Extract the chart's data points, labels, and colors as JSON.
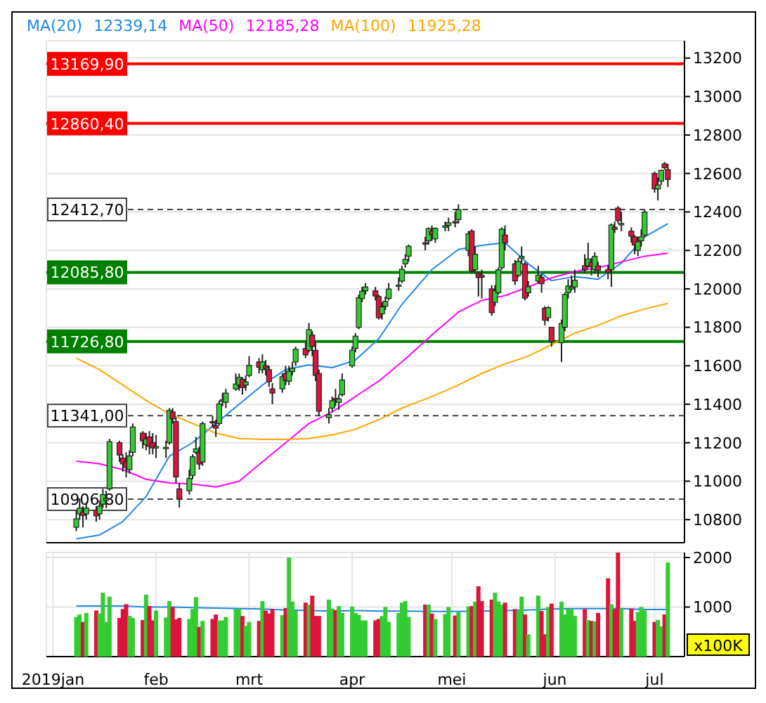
{
  "chart_data": [
    {
      "type": "candlestick",
      "legend": "top left",
      "grid": true,
      "tick_labels": "y",
      "x": [
        "2019-01-08",
        "2019-01-09",
        "2019-01-10",
        "2019-01-11",
        "2019-01-14",
        "2019-01-15",
        "2019-01-16",
        "2019-01-17",
        "2019-01-18",
        "2019-01-21",
        "2019-01-22",
        "2019-01-23",
        "2019-01-24",
        "2019-01-25",
        "2019-01-28",
        "2019-01-29",
        "2019-01-30",
        "2019-01-31",
        "2019-02-01",
        "2019-02-04",
        "2019-02-05",
        "2019-02-06",
        "2019-02-07",
        "2019-02-08",
        "2019-02-11",
        "2019-02-12",
        "2019-02-13",
        "2019-02-14",
        "2019-02-15",
        "2019-02-18",
        "2019-02-19",
        "2019-02-20",
        "2019-02-21",
        "2019-02-22",
        "2019-02-25",
        "2019-02-26",
        "2019-02-27",
        "2019-02-28",
        "2019-03-01",
        "2019-03-04",
        "2019-03-05",
        "2019-03-06",
        "2019-03-07",
        "2019-03-08",
        "2019-03-11",
        "2019-03-12",
        "2019-03-13",
        "2019-03-14",
        "2019-03-15",
        "2019-03-18",
        "2019-03-19",
        "2019-03-20",
        "2019-03-21",
        "2019-03-22",
        "2019-03-25",
        "2019-03-26",
        "2019-03-27",
        "2019-03-28",
        "2019-03-29",
        "2019-04-01",
        "2019-04-02",
        "2019-04-03",
        "2019-04-04",
        "2019-04-05",
        "2019-04-08",
        "2019-04-09",
        "2019-04-10",
        "2019-04-11",
        "2019-04-12",
        "2019-04-15",
        "2019-04-16",
        "2019-04-17",
        "2019-04-18",
        "2019-04-23",
        "2019-04-24",
        "2019-04-25",
        "2019-04-26",
        "2019-04-29",
        "2019-04-30",
        "2019-05-02",
        "2019-05-03",
        "2019-05-06",
        "2019-05-07",
        "2019-05-08",
        "2019-05-09",
        "2019-05-10",
        "2019-05-13",
        "2019-05-14",
        "2019-05-15",
        "2019-05-16",
        "2019-05-17",
        "2019-05-20",
        "2019-05-21",
        "2019-05-22",
        "2019-05-23",
        "2019-05-24",
        "2019-05-27",
        "2019-05-28",
        "2019-05-29",
        "2019-05-30",
        "2019-05-31",
        "2019-06-03",
        "2019-06-04",
        "2019-06-05",
        "2019-06-06",
        "2019-06-07",
        "2019-06-10",
        "2019-06-11",
        "2019-06-12",
        "2019-06-13",
        "2019-06-14",
        "2019-06-17",
        "2019-06-18",
        "2019-06-19",
        "2019-06-20",
        "2019-06-21",
        "2019-06-24",
        "2019-06-25",
        "2019-06-26",
        "2019-06-27",
        "2019-06-28",
        "2019-07-01",
        "2019-07-02",
        "2019-07-03",
        "2019-07-04",
        "2019-07-05"
      ],
      "ohlc": [
        [
          10760,
          10850,
          10740,
          10804
        ],
        [
          10830,
          10910,
          10800,
          10860
        ],
        [
          10840,
          10870,
          10760,
          10822
        ],
        [
          10830,
          10890,
          10800,
          10860
        ],
        [
          10850,
          10870,
          10790,
          10820
        ],
        [
          10830,
          10900,
          10800,
          10870
        ],
        [
          10880,
          10960,
          10860,
          10930
        ],
        [
          10900,
          10950,
          10860,
          10910
        ],
        [
          10960,
          11220,
          10950,
          11205
        ],
        [
          11200,
          11210,
          11100,
          11136
        ],
        [
          11120,
          11140,
          11050,
          11090
        ],
        [
          11100,
          11150,
          11020,
          11071
        ],
        [
          11060,
          11160,
          11040,
          11131
        ],
        [
          11150,
          11300,
          11130,
          11282
        ],
        [
          11250,
          11260,
          11170,
          11210
        ],
        [
          11190,
          11250,
          11160,
          11219
        ],
        [
          11230,
          11260,
          11140,
          11181
        ],
        [
          11200,
          11250,
          11140,
          11173
        ],
        [
          11180,
          11240,
          11120,
          11180
        ],
        [
          11170,
          11210,
          11120,
          11176
        ],
        [
          11200,
          11380,
          11190,
          11368
        ],
        [
          11360,
          11380,
          11300,
          11324
        ],
        [
          11310,
          11330,
          10990,
          11022
        ],
        [
          10960,
          10990,
          10863,
          10907
        ],
        [
          10950,
          11060,
          10930,
          11014
        ],
        [
          11030,
          11140,
          11010,
          11127
        ],
        [
          11150,
          11230,
          11140,
          11168
        ],
        [
          11150,
          11180,
          11060,
          11089
        ],
        [
          11100,
          11310,
          11080,
          11299
        ],
        [
          11310,
          11340,
          11280,
          11309
        ],
        [
          11290,
          11320,
          11230,
          11276
        ],
        [
          11300,
          11420,
          11290,
          11402
        ],
        [
          11420,
          11460,
          11390,
          11423
        ],
        [
          11410,
          11480,
          11380,
          11458
        ],
        [
          11480,
          11560,
          11470,
          11505
        ],
        [
          11500,
          11560,
          11470,
          11540
        ],
        [
          11530,
          11540,
          11450,
          11487
        ],
        [
          11500,
          11550,
          11470,
          11516
        ],
        [
          11550,
          11650,
          11540,
          11602
        ],
        [
          11620,
          11640,
          11560,
          11592
        ],
        [
          11580,
          11660,
          11560,
          11620
        ],
        [
          11600,
          11630,
          11550,
          11587
        ],
        [
          11580,
          11600,
          11490,
          11518
        ],
        [
          11480,
          11510,
          11400,
          11458
        ],
        [
          11480,
          11560,
          11460,
          11543
        ],
        [
          11560,
          11600,
          11500,
          11524
        ],
        [
          11520,
          11600,
          11500,
          11572
        ],
        [
          11570,
          11620,
          11550,
          11587
        ],
        [
          11620,
          11700,
          11600,
          11686
        ],
        [
          11690,
          11720,
          11640,
          11657
        ],
        [
          11680,
          11823,
          11670,
          11788
        ],
        [
          11760,
          11780,
          11650,
          11700
        ],
        [
          11680,
          11720,
          11520,
          11550
        ],
        [
          11560,
          11580,
          11340,
          11364
        ],
        [
          11330,
          11380,
          11300,
          11346
        ],
        [
          11380,
          11440,
          11360,
          11419
        ],
        [
          11430,
          11480,
          11390,
          11428
        ],
        [
          11410,
          11450,
          11370,
          11428
        ],
        [
          11450,
          11560,
          11440,
          11526
        ],
        [
          11600,
          11700,
          11590,
          11681
        ],
        [
          11690,
          11770,
          11670,
          11754
        ],
        [
          11800,
          11970,
          11790,
          11954
        ],
        [
          11950,
          12010,
          11930,
          11988
        ],
        [
          11990,
          12030,
          11970,
          12010
        ],
        [
          11990,
          12010,
          11940,
          11963
        ],
        [
          11960,
          11970,
          11840,
          11850
        ],
        [
          11870,
          11930,
          11840,
          11906
        ],
        [
          11910,
          11960,
          11890,
          11935
        ],
        [
          11950,
          12030,
          11940,
          11999
        ],
        [
          12020,
          12060,
          11990,
          12020
        ],
        [
          12040,
          12120,
          12030,
          12101
        ],
        [
          12130,
          12180,
          12110,
          12153
        ],
        [
          12170,
          12230,
          12140,
          12222
        ],
        [
          12240,
          12270,
          12200,
          12236
        ],
        [
          12250,
          12320,
          12230,
          12313
        ],
        [
          12300,
          12330,
          12250,
          12282
        ],
        [
          12260,
          12320,
          12240,
          12315
        ],
        [
          12320,
          12350,
          12300,
          12328
        ],
        [
          12330,
          12370,
          12300,
          12344
        ],
        [
          12350,
          12400,
          12320,
          12345
        ],
        [
          12360,
          12440,
          12340,
          12412
        ],
        [
          12200,
          12300,
          12170,
          12286
        ],
        [
          12300,
          12310,
          12080,
          12093
        ],
        [
          12100,
          12220,
          12080,
          12180
        ],
        [
          12080,
          12090,
          11960,
          12059
        ],
        [
          12070,
          12100,
          11950,
          12060
        ],
        [
          12000,
          12020,
          11860,
          11876
        ],
        [
          11930,
          12020,
          11910,
          11991
        ],
        [
          11980,
          12110,
          11970,
          12099
        ],
        [
          12110,
          12320,
          12100,
          12310
        ],
        [
          12280,
          12330,
          12200,
          12239
        ],
        [
          12130,
          12150,
          12020,
          12041
        ],
        [
          12070,
          12160,
          12060,
          12143
        ],
        [
          12160,
          12220,
          12130,
          12169
        ],
        [
          12130,
          12140,
          11940,
          11952
        ],
        [
          11980,
          12040,
          11960,
          12011
        ],
        [
          12040,
          12120,
          12030,
          12071
        ],
        [
          12060,
          12080,
          11980,
          12027
        ],
        [
          11900,
          11910,
          11810,
          11837
        ],
        [
          11850,
          11910,
          11830,
          11902
        ],
        [
          11800,
          11800,
          11700,
          11727
        ],
        [
          11720,
          11840,
          11620,
          11820
        ],
        [
          11800,
          11980,
          11780,
          11971
        ],
        [
          11980,
          12050,
          11950,
          12015
        ],
        [
          12000,
          12070,
          11990,
          12009
        ],
        [
          12010,
          12100,
          11980,
          12045
        ],
        [
          12120,
          12180,
          12080,
          12100
        ],
        [
          12120,
          12240,
          12110,
          12155
        ],
        [
          12140,
          12160,
          12070,
          12115
        ],
        [
          12100,
          12190,
          12080,
          12169
        ],
        [
          12120,
          12140,
          12060,
          12096
        ],
        [
          12100,
          12120,
          12050,
          12086
        ],
        [
          12100,
          12340,
          12010,
          12332
        ],
        [
          12320,
          12350,
          12290,
          12309
        ],
        [
          12420,
          12430,
          12340,
          12355
        ],
        [
          12340,
          12400,
          12300,
          12340
        ],
        [
          12300,
          12320,
          12240,
          12274
        ],
        [
          12270,
          12280,
          12180,
          12228
        ],
        [
          12200,
          12270,
          12170,
          12245
        ],
        [
          12250,
          12310,
          12220,
          12271
        ],
        [
          12280,
          12410,
          12270,
          12399
        ],
        [
          12600,
          12610,
          12500,
          12520
        ],
        [
          12520,
          12580,
          12460,
          12540
        ],
        [
          12560,
          12620,
          12540,
          12616
        ],
        [
          12650,
          12660,
          12620,
          12630
        ],
        [
          12620,
          12650,
          12530,
          12569
        ]
      ],
      "colors": [
        "#33cc33",
        "#33cc33",
        "#dc143c",
        "#33cc33",
        "#dc143c",
        "#33cc33",
        "#33cc33",
        "#33cc33",
        "#33cc33",
        "#dc143c",
        "#dc143c",
        "#dc143c",
        "#33cc33",
        "#33cc33",
        "#dc143c",
        "#33cc33",
        "#dc143c",
        "#dc143c",
        "#33cc33",
        "#33cc33",
        "#33cc33",
        "#dc143c",
        "#dc143c",
        "#dc143c",
        "#33cc33",
        "#33cc33",
        "#33cc33",
        "#dc143c",
        "#33cc33",
        "#dc143c",
        "#dc143c",
        "#33cc33",
        "#33cc33",
        "#33cc33",
        "#33cc33",
        "#33cc33",
        "#dc143c",
        "#33cc33",
        "#33cc33",
        "#dc143c",
        "#33cc33",
        "#dc143c",
        "#dc143c",
        "#dc143c",
        "#33cc33",
        "#dc143c",
        "#33cc33",
        "#33cc33",
        "#33cc33",
        "#dc143c",
        "#33cc33",
        "#dc143c",
        "#dc143c",
        "#dc143c",
        "#33cc33",
        "#33cc33",
        "#dc143c",
        "#33cc33",
        "#33cc33",
        "#33cc33",
        "#33cc33",
        "#33cc33",
        "#33cc33",
        "#33cc33",
        "#dc143c",
        "#dc143c",
        "#33cc33",
        "#33cc33",
        "#33cc33",
        "#33cc33",
        "#33cc33",
        "#33cc33",
        "#33cc33",
        "#dc143c",
        "#33cc33",
        "#dc143c",
        "#33cc33",
        "#33cc33",
        "#33cc33",
        "#dc143c",
        "#33cc33",
        "#33cc33",
        "#dc143c",
        "#33cc33",
        "#dc143c",
        "#dc143c",
        "#dc143c",
        "#33cc33",
        "#33cc33",
        "#33cc33",
        "#dc143c",
        "#dc143c",
        "#33cc33",
        "#33cc33",
        "#dc143c",
        "#33cc33",
        "#33cc33",
        "#dc143c",
        "#dc143c",
        "#33cc33",
        "#dc143c",
        "#33cc33",
        "#33cc33",
        "#33cc33",
        "#33cc33",
        "#33cc33",
        "#dc143c",
        "#33cc33",
        "#dc143c",
        "#33cc33",
        "#dc143c",
        "#dc143c",
        "#33cc33",
        "#dc143c",
        "#dc143c",
        "#33cc33",
        "#dc143c",
        "#dc143c",
        "#33cc33",
        "#33cc33",
        "#33cc33",
        "#dc143c",
        "#33cc33",
        "#33cc33",
        "#dc143c",
        "#dc143c"
      ],
      "series": [
        {
          "type": "line",
          "name": "MA(20)",
          "color": "#1e88e5",
          "x": [
            "2019-01-08",
            "2019-01-15",
            "2019-01-22",
            "2019-01-29",
            "2019-02-05",
            "2019-02-12",
            "2019-02-19",
            "2019-02-26",
            "2019-03-05",
            "2019-03-12",
            "2019-03-19",
            "2019-03-26",
            "2019-04-02",
            "2019-04-09",
            "2019-04-16",
            "2019-04-25",
            "2019-05-03",
            "2019-05-10",
            "2019-05-17",
            "2019-05-24",
            "2019-05-31",
            "2019-06-07",
            "2019-06-14",
            "2019-06-21",
            "2019-06-28",
            "2019-07-05"
          ],
          "values": [
            10700,
            10720,
            10790,
            10920,
            11130,
            11200,
            11300,
            11400,
            11500,
            11580,
            11605,
            11590,
            11630,
            11740,
            11920,
            12100,
            12205,
            12226,
            12240,
            12130,
            12043,
            12064,
            12050,
            12134,
            12270,
            12339
          ]
        },
        {
          "type": "line",
          "name": "MA(50)",
          "color": "#ff00ff",
          "x": [
            "2019-01-08",
            "2019-01-15",
            "2019-01-22",
            "2019-01-29",
            "2019-02-05",
            "2019-02-12",
            "2019-02-19",
            "2019-02-26",
            "2019-03-05",
            "2019-03-12",
            "2019-03-19",
            "2019-03-26",
            "2019-04-02",
            "2019-04-09",
            "2019-04-16",
            "2019-04-25",
            "2019-05-03",
            "2019-05-10",
            "2019-05-17",
            "2019-05-24",
            "2019-05-31",
            "2019-06-07",
            "2019-06-14",
            "2019-06-21",
            "2019-06-28",
            "2019-07-05"
          ],
          "values": [
            11104,
            11090,
            11060,
            11010,
            10991,
            10985,
            10970,
            11000,
            11100,
            11200,
            11300,
            11360,
            11440,
            11520,
            11620,
            11760,
            11880,
            11940,
            11965,
            12010,
            12057,
            12090,
            12110,
            12140,
            12170,
            12185
          ]
        },
        {
          "type": "line",
          "name": "MA(100)",
          "color": "#ffa500",
          "x": [
            "2019-01-08",
            "2019-01-15",
            "2019-01-22",
            "2019-01-29",
            "2019-02-05",
            "2019-02-12",
            "2019-02-19",
            "2019-02-26",
            "2019-03-05",
            "2019-03-12",
            "2019-03-19",
            "2019-03-26",
            "2019-04-02",
            "2019-04-09",
            "2019-04-16",
            "2019-04-25",
            "2019-05-03",
            "2019-05-10",
            "2019-05-17",
            "2019-05-24",
            "2019-05-31",
            "2019-06-07",
            "2019-06-14",
            "2019-06-21",
            "2019-06-28",
            "2019-07-05"
          ],
          "values": [
            11640,
            11580,
            11500,
            11420,
            11350,
            11300,
            11250,
            11222,
            11217,
            11217,
            11222,
            11240,
            11270,
            11320,
            11380,
            11440,
            11500,
            11560,
            11610,
            11650,
            11710,
            11770,
            11810,
            11860,
            11895,
            11925
          ]
        }
      ],
      "annotations": [
        "12339,14",
        "12185,28",
        "11925,28"
      ],
      "ref_lines": [
        {
          "axis": "y",
          "value": 13169.9,
          "label": "13169,90",
          "color": "#ff0000",
          "line_style": "solid"
        },
        {
          "axis": "y",
          "value": 12860.4,
          "label": "12860,40",
          "color": "#ff0000",
          "line_style": "solid"
        },
        {
          "axis": "y",
          "value": 12412.7,
          "label": "12412,70",
          "color": "#444444",
          "line_style": "dashed"
        },
        {
          "axis": "y",
          "value": 12085.8,
          "label": "12085,80",
          "color": "#008000",
          "line_style": "solid"
        },
        {
          "axis": "y",
          "value": 11726.8,
          "label": "11726,80",
          "color": "#008000",
          "line_style": "solid"
        },
        {
          "axis": "y",
          "value": 11341,
          "label": "11341,00",
          "color": "#444444",
          "line_style": "dashed"
        },
        {
          "axis": "y",
          "value": 10906.8,
          "label": "10906,80",
          "color": "#444444",
          "line_style": "dashed"
        }
      ],
      "xlim": [
        "2018-12-30",
        "2019-07-10"
      ],
      "xticks": [
        {
          "value": "2019-01-01",
          "label": null
        },
        {
          "value": "2019-02-01",
          "label": null
        },
        {
          "value": "2019-03-01",
          "label": null
        },
        {
          "value": "2019-04-01",
          "label": null
        },
        {
          "value": "2019-05-01",
          "label": null
        },
        {
          "value": "2019-06-01",
          "label": null
        },
        {
          "value": "2019-07-01",
          "label": null
        }
      ],
      "ylim": [
        10680,
        13290
      ],
      "yticks": [
        10800,
        11000,
        11200,
        11400,
        11600,
        11800,
        12000,
        12200,
        12400,
        12600,
        12800,
        13000,
        13200
      ]
    },
    {
      "type": "bar",
      "grid": true,
      "ylabel": "x100K",
      "x": [
        "2019-01-08",
        "2019-01-09",
        "2019-01-10",
        "2019-01-11",
        "2019-01-14",
        "2019-01-15",
        "2019-01-16",
        "2019-01-17",
        "2019-01-18",
        "2019-01-21",
        "2019-01-22",
        "2019-01-23",
        "2019-01-24",
        "2019-01-25",
        "2019-01-28",
        "2019-01-29",
        "2019-01-30",
        "2019-01-31",
        "2019-02-01",
        "2019-02-04",
        "2019-02-05",
        "2019-02-06",
        "2019-02-07",
        "2019-02-08",
        "2019-02-11",
        "2019-02-12",
        "2019-02-13",
        "2019-02-14",
        "2019-02-15",
        "2019-02-18",
        "2019-02-19",
        "2019-02-20",
        "2019-02-21",
        "2019-02-22",
        "2019-02-25",
        "2019-02-26",
        "2019-02-27",
        "2019-02-28",
        "2019-03-01",
        "2019-03-04",
        "2019-03-05",
        "2019-03-06",
        "2019-03-07",
        "2019-03-08",
        "2019-03-11",
        "2019-03-12",
        "2019-03-13",
        "2019-03-14",
        "2019-03-15",
        "2019-03-18",
        "2019-03-19",
        "2019-03-20",
        "2019-03-21",
        "2019-03-22",
        "2019-03-25",
        "2019-03-26",
        "2019-03-27",
        "2019-03-28",
        "2019-03-29",
        "2019-04-01",
        "2019-04-02",
        "2019-04-03",
        "2019-04-04",
        "2019-04-05",
        "2019-04-08",
        "2019-04-09",
        "2019-04-10",
        "2019-04-11",
        "2019-04-12",
        "2019-04-15",
        "2019-04-16",
        "2019-04-17",
        "2019-04-18",
        "2019-04-23",
        "2019-04-24",
        "2019-04-25",
        "2019-04-26",
        "2019-04-29",
        "2019-04-30",
        "2019-05-02",
        "2019-05-03",
        "2019-05-06",
        "2019-05-07",
        "2019-05-08",
        "2019-05-09",
        "2019-05-10",
        "2019-05-13",
        "2019-05-14",
        "2019-05-15",
        "2019-05-16",
        "2019-05-17",
        "2019-05-20",
        "2019-05-21",
        "2019-05-22",
        "2019-05-23",
        "2019-05-24",
        "2019-05-27",
        "2019-05-28",
        "2019-05-29",
        "2019-05-30",
        "2019-05-31",
        "2019-06-03",
        "2019-06-04",
        "2019-06-05",
        "2019-06-06",
        "2019-06-07",
        "2019-06-10",
        "2019-06-11",
        "2019-06-12",
        "2019-06-13",
        "2019-06-14",
        "2019-06-17",
        "2019-06-18",
        "2019-06-19",
        "2019-06-20",
        "2019-06-21",
        "2019-06-24",
        "2019-06-25",
        "2019-06-26",
        "2019-06-27",
        "2019-06-28",
        "2019-07-01",
        "2019-07-02",
        "2019-07-03",
        "2019-07-04",
        "2019-07-05"
      ],
      "series": [
        {
          "type": "bar",
          "values": [
            800,
            850,
            700,
            880,
            930,
            870,
            1290,
            700,
            1210,
            780,
            960,
            1060,
            820,
            780,
            740,
            1250,
            1020,
            730,
            930,
            790,
            1120,
            1000,
            750,
            780,
            760,
            960,
            1200,
            600,
            720,
            760,
            850,
            730,
            730,
            800,
            960,
            960,
            820,
            620,
            700,
            720,
            1120,
            930,
            870,
            960,
            840,
            980,
            2000,
            1110,
            920,
            1090,
            1050,
            1230,
            820,
            820,
            1150,
            970,
            940,
            1020,
            880,
            1010,
            880,
            840,
            730,
            730,
            730,
            760,
            820,
            1000,
            700,
            880,
            1090,
            1120,
            800,
            1050,
            1050,
            870,
            760,
            860,
            1000,
            830,
            900,
            1010,
            1020,
            1110,
            1420,
            1120,
            1150,
            1290,
            1110,
            1050,
            1090,
            960,
            930,
            1210,
            850,
            450,
            1230,
            920,
            450,
            1000,
            1070,
            1110,
            850,
            960,
            960,
            820,
            960,
            740,
            720,
            710,
            880,
            1580,
            1060,
            960,
            2100,
            970,
            970,
            720,
            900,
            1000,
            930,
            700,
            740,
            610,
            850,
            1900
          ],
          "colors": [
            "#33cc33",
            "#33cc33",
            "#dc143c",
            "#33cc33",
            "#dc143c",
            "#33cc33",
            "#33cc33",
            "#33cc33",
            "#33cc33",
            "#dc143c",
            "#dc143c",
            "#dc143c",
            "#33cc33",
            "#33cc33",
            "#dc143c",
            "#33cc33",
            "#dc143c",
            "#dc143c",
            "#33cc33",
            "#33cc33",
            "#33cc33",
            "#dc143c",
            "#dc143c",
            "#dc143c",
            "#33cc33",
            "#33cc33",
            "#33cc33",
            "#dc143c",
            "#33cc33",
            "#dc143c",
            "#dc143c",
            "#33cc33",
            "#33cc33",
            "#33cc33",
            "#33cc33",
            "#33cc33",
            "#dc143c",
            "#33cc33",
            "#33cc33",
            "#dc143c",
            "#33cc33",
            "#dc143c",
            "#dc143c",
            "#dc143c",
            "#33cc33",
            "#dc143c",
            "#33cc33",
            "#33cc33",
            "#33cc33",
            "#dc143c",
            "#33cc33",
            "#dc143c",
            "#dc143c",
            "#dc143c",
            "#33cc33",
            "#33cc33",
            "#dc143c",
            "#33cc33",
            "#33cc33",
            "#33cc33",
            "#33cc33",
            "#33cc33",
            "#33cc33",
            "#33cc33",
            "#dc143c",
            "#dc143c",
            "#33cc33",
            "#33cc33",
            "#33cc33",
            "#33cc33",
            "#33cc33",
            "#33cc33",
            "#33cc33",
            "#dc143c",
            "#33cc33",
            "#dc143c",
            "#33cc33",
            "#33cc33",
            "#33cc33",
            "#dc143c",
            "#33cc33",
            "#33cc33",
            "#dc143c",
            "#33cc33",
            "#dc143c",
            "#dc143c",
            "#dc143c",
            "#33cc33",
            "#33cc33",
            "#33cc33",
            "#dc143c",
            "#dc143c",
            "#33cc33",
            "#33cc33",
            "#dc143c",
            "#33cc33",
            "#33cc33",
            "#dc143c",
            "#dc143c",
            "#33cc33",
            "#dc143c",
            "#33cc33",
            "#33cc33",
            "#33cc33",
            "#33cc33",
            "#33cc33",
            "#dc143c",
            "#33cc33",
            "#dc143c",
            "#33cc33",
            "#dc143c",
            "#dc143c",
            "#33cc33",
            "#dc143c",
            "#dc143c",
            "#33cc33",
            "#dc143c",
            "#dc143c",
            "#33cc33",
            "#33cc33",
            "#33cc33",
            "#dc143c",
            "#33cc33",
            "#33cc33",
            "#dc143c",
            "#33cc33"
          ]
        },
        {
          "type": "line",
          "color": "#1e88e5",
          "x": [
            "2019-01-08",
            "2019-01-15",
            "2019-01-22",
            "2019-01-29",
            "2019-02-05",
            "2019-02-12",
            "2019-02-19",
            "2019-02-26",
            "2019-03-05",
            "2019-03-12",
            "2019-03-19",
            "2019-03-26",
            "2019-04-02",
            "2019-04-09",
            "2019-04-16",
            "2019-04-25",
            "2019-05-03",
            "2019-05-10",
            "2019-05-17",
            "2019-05-24",
            "2019-05-31",
            "2019-06-07",
            "2019-06-14",
            "2019-06-21",
            "2019-06-28",
            "2019-07-05"
          ],
          "values": [
            1020,
            1020,
            1020,
            1000,
            1000,
            990,
            980,
            970,
            960,
            940,
            930,
            920,
            930,
            920,
            920,
            910,
            910,
            920,
            930,
            940,
            960,
            970,
            970,
            970,
            950,
            950
          ]
        }
      ],
      "xlim": [
        "2018-12-30",
        "2019-07-10"
      ],
      "xticks": [
        {
          "value": "2019-01-01",
          "label": "2019jan"
        },
        {
          "value": "2019-02-01",
          "label": "feb"
        },
        {
          "value": "2019-03-01",
          "label": "mrt"
        },
        {
          "value": "2019-04-01",
          "label": "apr"
        },
        {
          "value": "2019-05-01",
          "label": "mei"
        },
        {
          "value": "2019-06-01",
          "label": "jun"
        },
        {
          "value": "2019-07-01",
          "label": "jul"
        }
      ],
      "ylim": [
        0,
        2100
      ],
      "yticks": [
        1000,
        2000
      ]
    }
  ]
}
